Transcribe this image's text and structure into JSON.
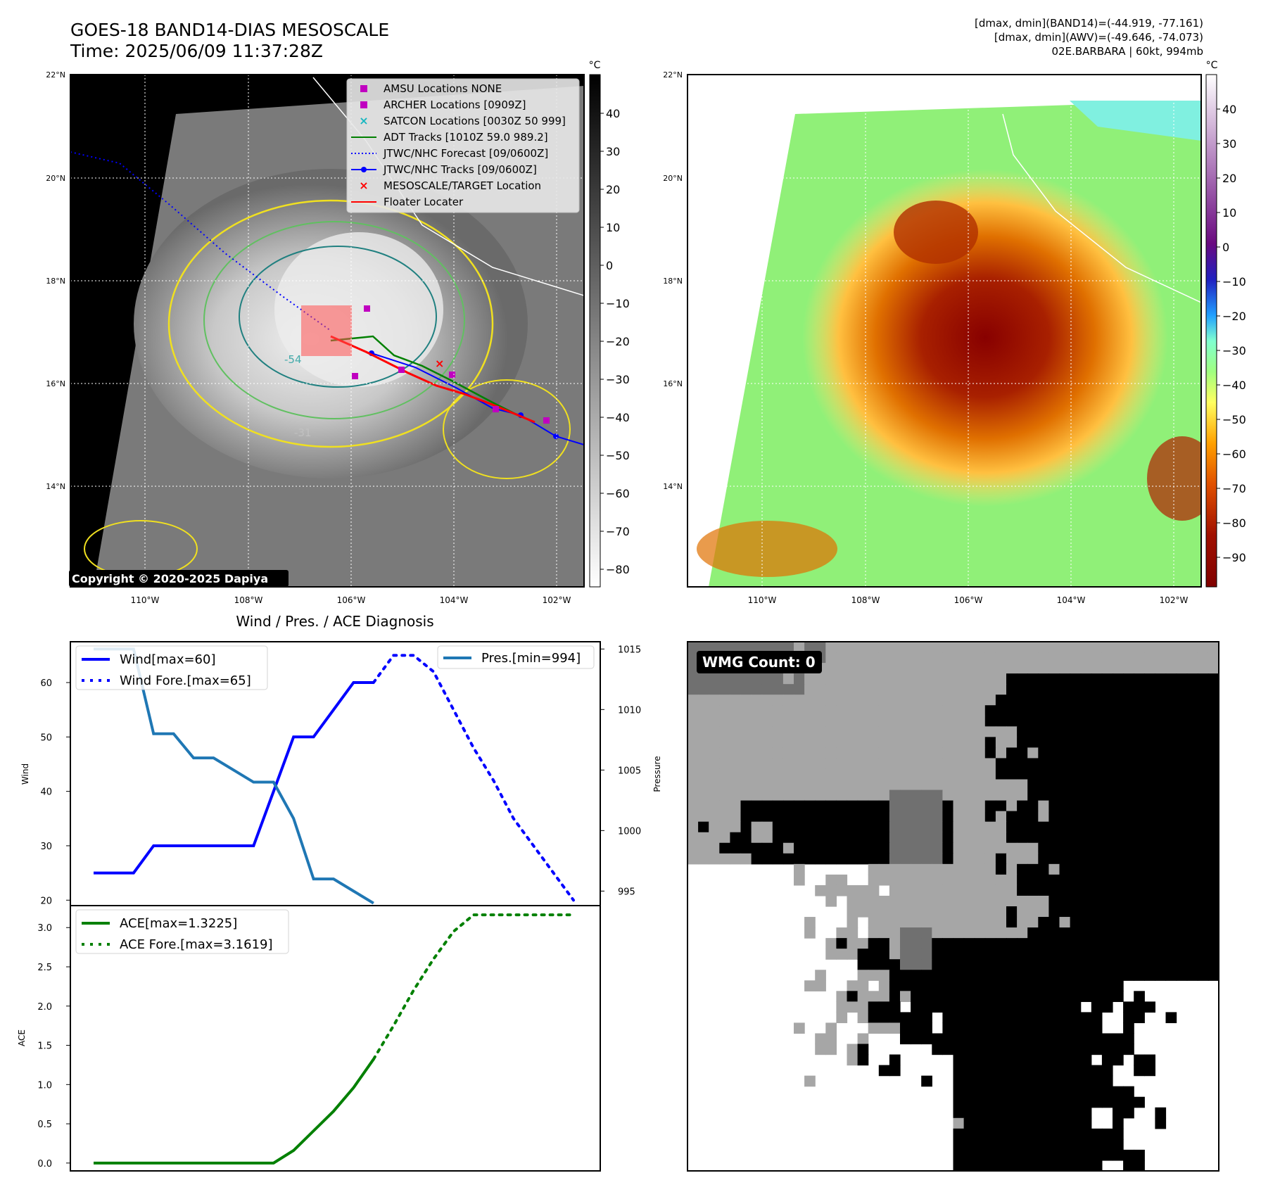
{
  "header": {
    "title_line1": "GOES-18 BAND14-DIAS MESOSCALE",
    "title_line2": "Time: 2025/06/09 11:37:28Z",
    "info_line1": "[dmax, dmin](BAND14)=(-44.919, -77.161)",
    "info_line2": "[dmax, dmin](AWV)=(-49.646, -74.073)",
    "info_line3": "02E.BARBARA | 60kt, 994mb"
  },
  "maps": {
    "lat_labels": [
      "22°N",
      "20°N",
      "18°N",
      "16°N",
      "14°N"
    ],
    "lon_labels": [
      "110°W",
      "108°W",
      "106°W",
      "104°W",
      "102°W"
    ],
    "colorbar_unit": "°C",
    "colorbar1_ticks": [
      "40",
      "30",
      "20",
      "10",
      "0",
      "−10",
      "−20",
      "−30",
      "−40",
      "−50",
      "−60",
      "−70",
      "−80"
    ],
    "colorbar2_ticks": [
      "40",
      "30",
      "20",
      "10",
      "0",
      "−10",
      "−20",
      "−30",
      "−40",
      "−50",
      "−60",
      "−70",
      "−80",
      "−90"
    ],
    "copyright": "Copyright © 2020-2025 Dapiya",
    "contour_labels": [
      "-54",
      "-31"
    ],
    "legend": [
      {
        "label": "AMSU Locations NONE",
        "color": "#c000c0",
        "symbol": "square"
      },
      {
        "label": "ARCHER Locations [0909Z]",
        "color": "#c000c0",
        "symbol": "square"
      },
      {
        "label": "SATCON Locations [0030Z 50 999]",
        "color": "#17b7c0",
        "symbol": "x"
      },
      {
        "label": "ADT Tracks [1010Z 59.0 989.2]",
        "color": "#008000",
        "symbol": "line"
      },
      {
        "label": "JTWC/NHC Forecast [09/0600Z]",
        "color": "#0000ff",
        "symbol": "dotted"
      },
      {
        "label": "JTWC/NHC Tracks [09/0600Z]",
        "color": "#0000ff",
        "symbol": "line-dot"
      },
      {
        "label": "MESOSCALE/TARGET Location",
        "color": "#ff0000",
        "symbol": "x"
      },
      {
        "label": "Floater Locater",
        "color": "#ff0000",
        "symbol": "line"
      }
    ]
  },
  "wmg": {
    "label": "WMG Count: 0"
  },
  "chart_data": [
    {
      "type": "line",
      "title": "Wind / Pres. / ACE Diagnosis",
      "ylabel": "Wind",
      "y2label": "Pressure",
      "ylim": [
        19,
        67.5
      ],
      "y2lim": [
        993.8,
        1015.6
      ],
      "x": [
        0,
        1,
        2,
        3,
        4,
        5,
        6,
        7,
        8,
        9,
        10,
        11,
        12,
        13,
        14,
        15,
        16,
        17,
        18,
        19,
        20,
        21,
        22,
        23,
        24
      ],
      "yticks": [
        "60",
        "50",
        "40",
        "30",
        "20"
      ],
      "y2ticks": [
        "1015",
        "1010",
        "1005",
        "1000",
        "995"
      ],
      "series": [
        {
          "name": "Wind[max=60]",
          "axis": "left",
          "color": "#0000ff",
          "style": "solid",
          "x": [
            0,
            1,
            2,
            3,
            4,
            5,
            6,
            7,
            8,
            9,
            10,
            11,
            12,
            13,
            14
          ],
          "values": [
            25,
            25,
            25,
            30,
            30,
            30,
            30,
            30,
            30,
            40,
            50,
            50,
            55,
            60,
            60
          ]
        },
        {
          "name": "Wind Fore.[max=65]",
          "axis": "left",
          "color": "#0000ff",
          "style": "dotted",
          "x": [
            14,
            15,
            16,
            17,
            18,
            19,
            20,
            21,
            22,
            23,
            24
          ],
          "values": [
            60,
            65,
            65,
            62,
            55,
            48,
            42,
            35,
            30,
            25,
            20
          ]
        },
        {
          "name": "Pres.[min=994]",
          "axis": "right",
          "color": "#1f77b4",
          "style": "solid",
          "x": [
            0,
            1,
            2,
            3,
            4,
            5,
            6,
            7,
            8,
            9,
            10,
            11,
            12,
            13,
            14
          ],
          "values": [
            1015,
            1015,
            1015,
            1008,
            1008,
            1006,
            1006,
            1005,
            1004,
            1004,
            1001,
            996,
            996,
            995,
            994
          ]
        }
      ]
    },
    {
      "type": "line",
      "ylabel": "ACE",
      "ylim": [
        -0.1,
        3.28
      ],
      "x": [
        0,
        1,
        2,
        3,
        4,
        5,
        6,
        7,
        8,
        9,
        10,
        11,
        12,
        13,
        14,
        15,
        16,
        17,
        18,
        19,
        20,
        21,
        22,
        23,
        24
      ],
      "yticks": [
        "3.0",
        "2.5",
        "2.0",
        "1.5",
        "1.0",
        "0.5",
        "0.0"
      ],
      "series": [
        {
          "name": "ACE[max=1.3225]",
          "color": "#008000",
          "style": "solid",
          "x": [
            0,
            1,
            2,
            3,
            4,
            5,
            6,
            7,
            8,
            9,
            10,
            11,
            12,
            13,
            14
          ],
          "values": [
            0,
            0,
            0,
            0,
            0,
            0,
            0,
            0,
            0,
            0,
            0.16,
            0.41,
            0.66,
            0.96,
            1.3225
          ]
        },
        {
          "name": "ACE Fore.[max=3.1619]",
          "color": "#008000",
          "style": "dotted",
          "x": [
            14,
            15,
            16,
            17,
            18,
            19,
            20,
            21,
            22,
            23,
            24
          ],
          "values": [
            1.3225,
            1.75,
            2.2,
            2.6,
            2.95,
            3.1619,
            3.1619,
            3.1619,
            3.1619,
            3.1619,
            3.1619
          ]
        }
      ]
    }
  ]
}
